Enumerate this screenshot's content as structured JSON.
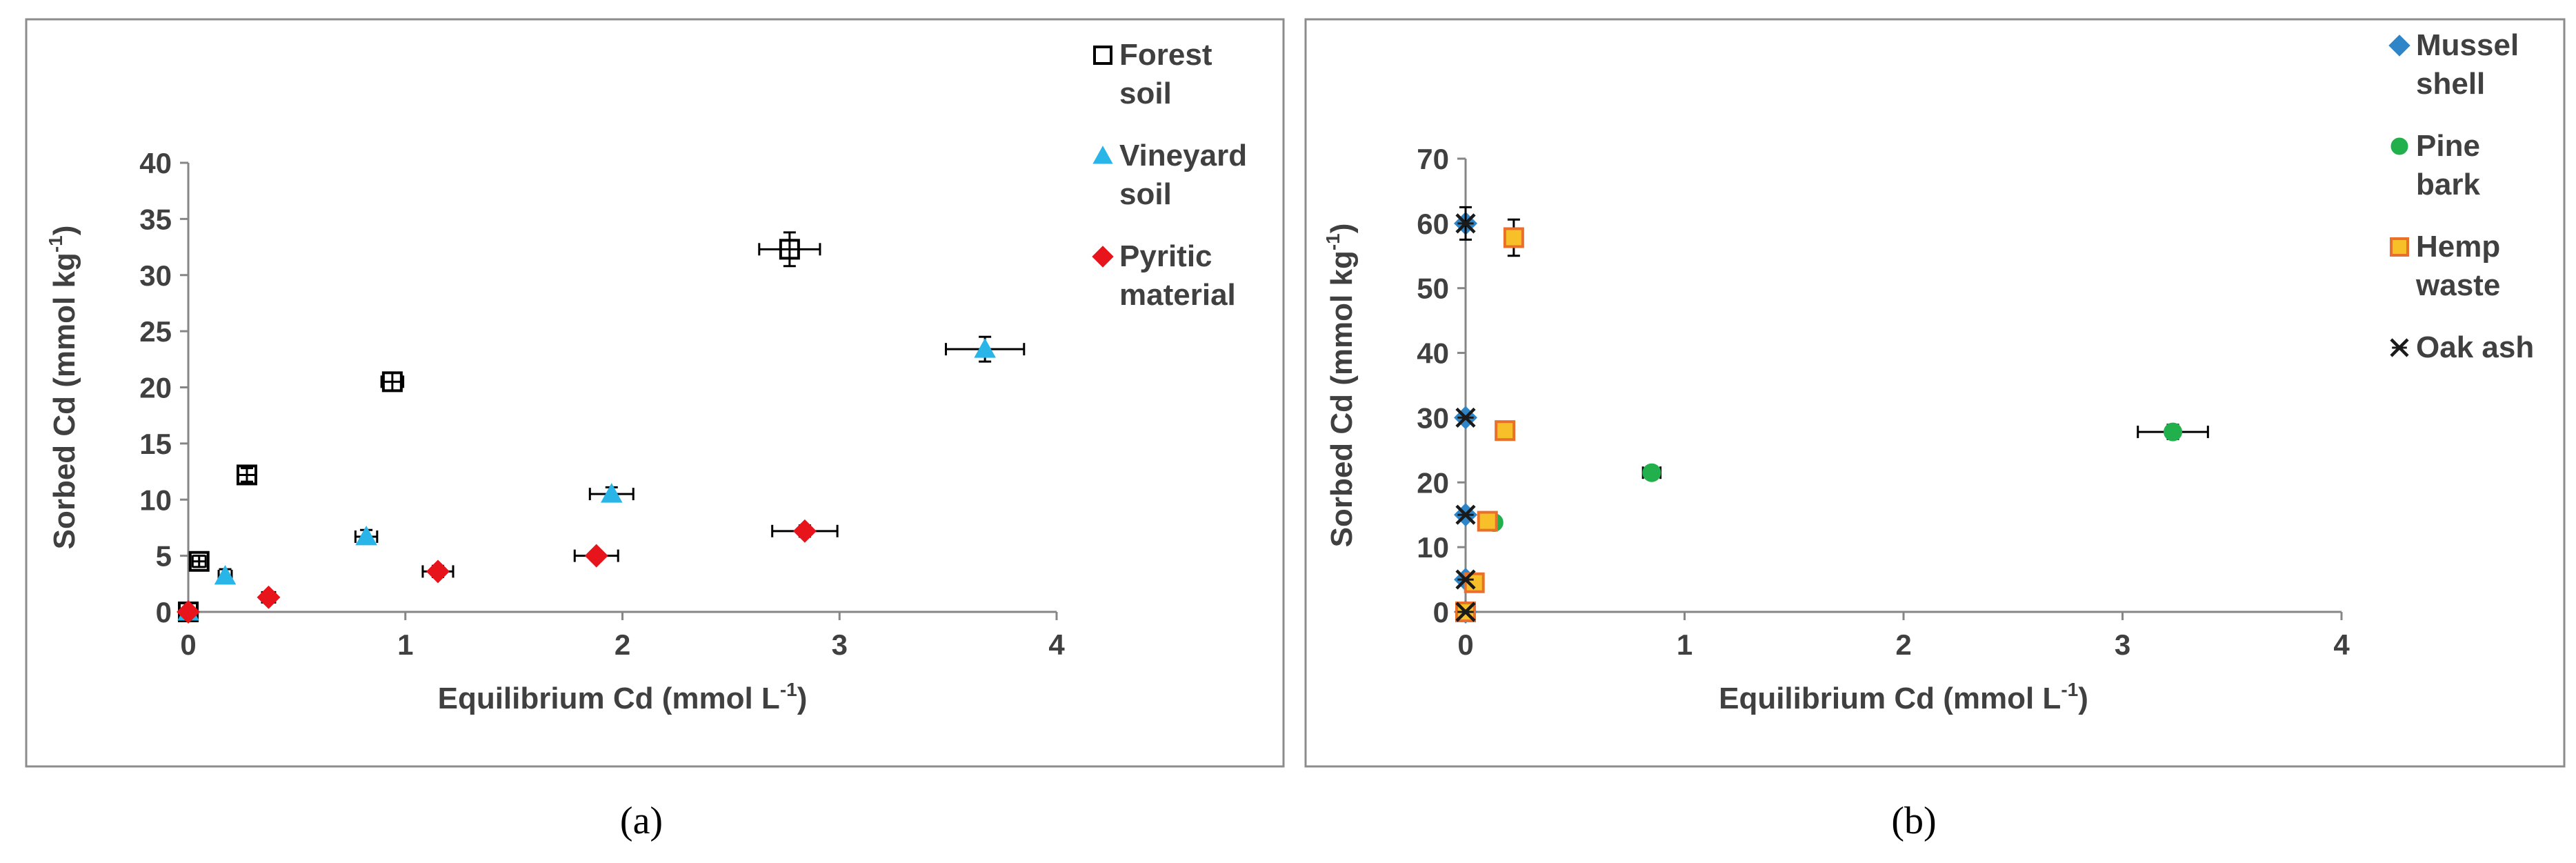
{
  "chart_data": [
    {
      "type": "scatter",
      "panel_label": "(a)",
      "xlabel_main": "Equilibrium Cd (mmol L",
      "xlabel_sup": "-1",
      "xlabel_end": ")",
      "ylabel_main": "Sorbed Cd (mmol kg",
      "ylabel_sup": "-1",
      "ylabel_end": ")",
      "xlim": [
        0,
        4
      ],
      "ylim": [
        0,
        40
      ],
      "xticks": [
        "0",
        "1",
        "2",
        "3",
        "4"
      ],
      "yticks": [
        "0",
        "5",
        "10",
        "15",
        "20",
        "25",
        "30",
        "35",
        "40"
      ],
      "legend_position": "top-right",
      "series": [
        {
          "name_lines": [
            "Forest",
            "soil"
          ],
          "marker": "square-open",
          "color": "#000000",
          "points": [
            {
              "x": 0.0,
              "y": 0.0,
              "xerr": 0.02,
              "yerr": 0.3
            },
            {
              "x": 0.05,
              "y": 4.5,
              "xerr": 0.03,
              "yerr": 0.5
            },
            {
              "x": 0.27,
              "y": 12.2,
              "xerr": 0.04,
              "yerr": 0.6
            },
            {
              "x": 0.94,
              "y": 20.5,
              "xerr": 0.05,
              "yerr": 0.8
            },
            {
              "x": 2.77,
              "y": 32.3,
              "xerr": 0.14,
              "yerr": 1.5
            }
          ]
        },
        {
          "name_lines": [
            "Vineyard",
            "soil"
          ],
          "marker": "triangle",
          "color": "#29b5e8",
          "points": [
            {
              "x": 0.0,
              "y": 0.0,
              "xerr": 0.02,
              "yerr": 0.3
            },
            {
              "x": 0.17,
              "y": 3.2,
              "xerr": 0.03,
              "yerr": 0.6
            },
            {
              "x": 0.82,
              "y": 6.7,
              "xerr": 0.05,
              "yerr": 0.6
            },
            {
              "x": 1.95,
              "y": 10.5,
              "xerr": 0.1,
              "yerr": 0.6
            },
            {
              "x": 3.67,
              "y": 23.4,
              "xerr": 0.18,
              "yerr": 1.1
            }
          ]
        },
        {
          "name_lines": [
            "Pyritic",
            "material"
          ],
          "marker": "diamond",
          "color": "#e8141b",
          "points": [
            {
              "x": 0.0,
              "y": 0.0,
              "xerr": 0.02,
              "yerr": 0.3
            },
            {
              "x": 0.37,
              "y": 1.3,
              "xerr": 0.03,
              "yerr": 0.3
            },
            {
              "x": 1.15,
              "y": 3.6,
              "xerr": 0.07,
              "yerr": 0.5
            },
            {
              "x": 1.88,
              "y": 5.0,
              "xerr": 0.1,
              "yerr": 0.4
            },
            {
              "x": 2.84,
              "y": 7.2,
              "xerr": 0.15,
              "yerr": 0.5
            }
          ]
        }
      ]
    },
    {
      "type": "scatter",
      "panel_label": "(b)",
      "xlabel_main": "Equilibrium Cd (mmol L",
      "xlabel_sup": "-1",
      "xlabel_end": ")",
      "ylabel_main": "Sorbed Cd (mmol kg",
      "ylabel_sup": "-1",
      "ylabel_end": ")",
      "xlim": [
        0,
        4
      ],
      "ylim": [
        0,
        70
      ],
      "xticks": [
        "0",
        "1",
        "2",
        "3",
        "4"
      ],
      "yticks": [
        "0",
        "10",
        "20",
        "30",
        "40",
        "50",
        "60",
        "70"
      ],
      "legend_position": "top-right",
      "series": [
        {
          "name_lines": [
            "Mussel",
            "shell"
          ],
          "marker": "diamond",
          "color": "#2e86c8",
          "points": [
            {
              "x": 0.0,
              "y": 0.0,
              "xerr": 0.0,
              "yerr": 0.0
            },
            {
              "x": 0.0,
              "y": 5.0,
              "xerr": 0.0,
              "yerr": 0.0
            },
            {
              "x": 0.0,
              "y": 15.0,
              "xerr": 0.0,
              "yerr": 0.0
            },
            {
              "x": 0.0,
              "y": 30.0,
              "xerr": 0.0,
              "yerr": 0.0
            },
            {
              "x": 0.0,
              "y": 60.0,
              "xerr": 0.0,
              "yerr": 0.0
            }
          ]
        },
        {
          "name_lines": [
            "Pine",
            "bark"
          ],
          "marker": "circle",
          "color": "#21b04b",
          "points": [
            {
              "x": 0.0,
              "y": 0.0,
              "xerr": 0.0,
              "yerr": 0.0
            },
            {
              "x": 0.13,
              "y": 13.8,
              "xerr": 0.02,
              "yerr": 0.5
            },
            {
              "x": 0.85,
              "y": 21.5,
              "xerr": 0.04,
              "yerr": 0.8
            },
            {
              "x": 3.23,
              "y": 27.8,
              "xerr": 0.16,
              "yerr": 1.1
            }
          ]
        },
        {
          "name_lines": [
            "Hemp",
            "waste"
          ],
          "marker": "square",
          "color": "#f7c028",
          "stroke": "#e8702a",
          "points": [
            {
              "x": 0.0,
              "y": 0.0,
              "xerr": 0.0,
              "yerr": 0.0
            },
            {
              "x": 0.04,
              "y": 4.5,
              "xerr": 0.02,
              "yerr": 0.5
            },
            {
              "x": 0.1,
              "y": 14.0,
              "xerr": 0.02,
              "yerr": 0.8
            },
            {
              "x": 0.18,
              "y": 28.0,
              "xerr": 0.02,
              "yerr": 1.0
            },
            {
              "x": 0.22,
              "y": 57.8,
              "xerr": 0.02,
              "yerr": 2.8
            }
          ]
        },
        {
          "name_lines": [
            "Oak ash"
          ],
          "marker": "cross",
          "color": "#1a1a1a",
          "points": [
            {
              "x": 0.0,
              "y": 0.0,
              "xerr": 0.0,
              "yerr": 0.0
            },
            {
              "x": 0.0,
              "y": 5.0,
              "xerr": 0.0,
              "yerr": 0.0
            },
            {
              "x": 0.0,
              "y": 15.0,
              "xerr": 0.0,
              "yerr": 0.0
            },
            {
              "x": 0.0,
              "y": 30.0,
              "xerr": 0.0,
              "yerr": 0.0
            },
            {
              "x": 0.0,
              "y": 60.0,
              "xerr": 0.0,
              "yerr": 2.5
            }
          ]
        }
      ]
    }
  ]
}
